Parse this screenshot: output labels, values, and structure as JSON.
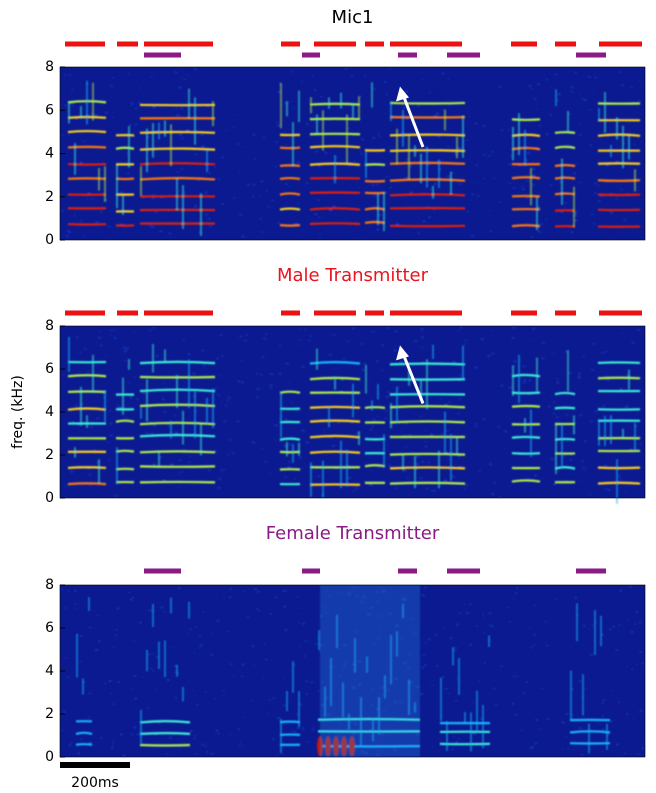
{
  "chart_data": [
    {
      "type": "spectrogram",
      "title": "Mic1",
      "title_color": "#000000",
      "ylim": [
        0,
        8
      ],
      "yticks": [
        0,
        2,
        4,
        6,
        8
      ]
    },
    {
      "type": "spectrogram",
      "title": "Male Transmitter",
      "title_color": "#e8141e",
      "ylabel": "freq. (kHz)",
      "ylim": [
        0,
        8
      ],
      "yticks": [
        0,
        2,
        4,
        6,
        8
      ]
    },
    {
      "type": "spectrogram",
      "title": "Female Transmitter",
      "title_color": "#8a1a85",
      "ylim": [
        0,
        8
      ],
      "yticks": [
        0,
        2,
        4,
        6,
        8
      ],
      "scale_bar_label": "200ms"
    }
  ]
}
